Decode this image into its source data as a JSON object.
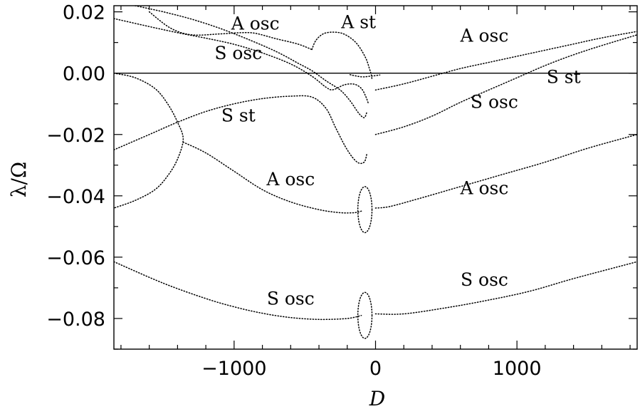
{
  "chart_data": {
    "type": "line",
    "xlabel": "D",
    "ylabel": "λ/Ω",
    "xlim": [
      -1850,
      1850
    ],
    "ylim": [
      -0.09,
      0.022
    ],
    "xticks": [
      {
        "value": -1000,
        "label": "−1000"
      },
      {
        "value": 0,
        "label": "0"
      },
      {
        "value": 1000,
        "label": "1000"
      }
    ],
    "yticks": [
      {
        "value": 0.02,
        "label": "0.02"
      },
      {
        "value": 0.0,
        "label": "0.00"
      },
      {
        "value": -0.02,
        "label": "−0.02"
      },
      {
        "value": -0.04,
        "label": "−0.04"
      },
      {
        "value": -0.06,
        "label": "−0.06"
      },
      {
        "value": -0.08,
        "label": "−0.08"
      }
    ],
    "grid": false,
    "reference_line_y": 0.0,
    "annotations": [
      {
        "text": "A osc",
        "x": -850,
        "y": 0.0142
      },
      {
        "text": "A st",
        "x": -120,
        "y": 0.0147
      },
      {
        "text": "A osc",
        "x": 770,
        "y": 0.0103
      },
      {
        "text": "S osc",
        "x": -970,
        "y": 0.0046
      },
      {
        "text": "S st",
        "x": 1330,
        "y": -0.0032
      },
      {
        "text": "S osc",
        "x": 840,
        "y": -0.0113
      },
      {
        "text": "S st",
        "x": -970,
        "y": -0.0158
      },
      {
        "text": "A osc",
        "x": -600,
        "y": -0.0366
      },
      {
        "text": "A osc",
        "x": 770,
        "y": -0.0395
      },
      {
        "text": "S osc",
        "x": 770,
        "y": -0.0693
      },
      {
        "text": "S osc",
        "x": -600,
        "y": -0.0755
      }
    ],
    "series": [
      {
        "values": [
          [
            -1850,
            0.0178
          ],
          [
            -1600,
            0.0152
          ],
          [
            -1400,
            0.0132
          ],
          [
            -1200,
            0.0114
          ],
          [
            -1000,
            0.0094
          ],
          [
            -800,
            0.0066
          ],
          [
            -600,
            0.003
          ],
          [
            -450,
            -0.001
          ],
          [
            -350,
            -0.0046
          ],
          [
            -300,
            -0.0054
          ],
          [
            -220,
            -0.0038
          ],
          [
            -150,
            -0.0036
          ],
          [
            -100,
            -0.005
          ],
          [
            -70,
            -0.0075
          ],
          [
            -50,
            -0.01
          ]
        ]
      },
      {
        "values": [
          [
            -1700,
            0.022
          ],
          [
            -1500,
            0.02
          ],
          [
            -1300,
            0.0176
          ],
          [
            -1100,
            0.0146
          ],
          [
            -900,
            0.011
          ],
          [
            -700,
            0.007
          ],
          [
            -550,
            0.0033
          ],
          [
            -450,
            0.0008
          ],
          [
            -350,
            -0.0025
          ],
          [
            -250,
            -0.0055
          ],
          [
            -180,
            -0.009
          ],
          [
            -120,
            -0.013
          ],
          [
            -80,
            -0.0145
          ],
          [
            -60,
            -0.0125
          ]
        ]
      },
      {
        "values": [
          [
            -1600,
            0.02
          ],
          [
            -1450,
            0.0147
          ],
          [
            -1300,
            0.0125
          ],
          [
            -1100,
            0.0128
          ],
          [
            -950,
            0.0132
          ],
          [
            -850,
            0.013
          ],
          [
            -700,
            0.0112
          ],
          [
            -550,
            0.0095
          ],
          [
            -450,
            0.0077
          ]
        ]
      },
      {
        "values": [
          [
            -450,
            0.0077
          ],
          [
            -420,
            0.0108
          ],
          [
            -360,
            0.013
          ],
          [
            -270,
            0.0133
          ],
          [
            -200,
            0.0122
          ],
          [
            -130,
            0.0095
          ],
          [
            -70,
            0.005
          ],
          [
            -40,
            0.001
          ],
          [
            -30,
            -0.0005
          ],
          [
            -25,
            -0.002
          ]
        ]
      },
      {
        "values": [
          [
            -180,
            -0.0005
          ],
          [
            -100,
            -0.0012
          ],
          [
            -40,
            -0.001
          ],
          [
            0,
            -0.0008
          ],
          [
            30,
            -0.0006
          ]
        ]
      },
      {
        "values": [
          [
            -1850,
            -0.025
          ],
          [
            -1600,
            -0.02
          ],
          [
            -1400,
            -0.016
          ],
          [
            -1200,
            -0.0125
          ],
          [
            -1000,
            -0.01
          ],
          [
            -800,
            -0.0083
          ],
          [
            -600,
            -0.0075
          ],
          [
            -450,
            -0.0078
          ],
          [
            -350,
            -0.0115
          ],
          [
            -280,
            -0.018
          ],
          [
            -200,
            -0.025
          ],
          [
            -130,
            -0.029
          ],
          [
            -80,
            -0.029
          ],
          [
            -60,
            -0.026
          ]
        ]
      },
      {
        "values": [
          [
            0,
            -0.0055
          ],
          [
            200,
            -0.0035
          ],
          [
            400,
            -0.001
          ],
          [
            600,
            0.0015
          ],
          [
            800,
            0.0035
          ],
          [
            1000,
            0.0055
          ],
          [
            1200,
            0.0075
          ],
          [
            1400,
            0.0095
          ],
          [
            1600,
            0.0115
          ],
          [
            1850,
            0.0136
          ]
        ]
      },
      {
        "values": [
          [
            0,
            -0.02
          ],
          [
            200,
            -0.0175
          ],
          [
            400,
            -0.014
          ],
          [
            600,
            -0.0095
          ],
          [
            800,
            -0.0055
          ],
          [
            1000,
            -0.0015
          ],
          [
            1200,
            0.0025
          ],
          [
            1400,
            0.006
          ],
          [
            1600,
            0.009
          ],
          [
            1850,
            0.0125
          ]
        ]
      },
      {
        "values": [
          [
            -1850,
            0.0
          ],
          [
            -1700,
            -0.0015
          ],
          [
            -1560,
            -0.005
          ],
          [
            -1470,
            -0.01
          ],
          [
            -1400,
            -0.016
          ],
          [
            -1360,
            -0.0215
          ],
          [
            -1400,
            -0.028
          ],
          [
            -1470,
            -0.0335
          ],
          [
            -1560,
            -0.038
          ],
          [
            -1700,
            -0.0415
          ],
          [
            -1850,
            -0.044
          ]
        ]
      },
      {
        "values": [
          [
            -1360,
            -0.0225
          ],
          [
            -1200,
            -0.026
          ],
          [
            -1000,
            -0.032
          ],
          [
            -800,
            -0.038
          ],
          [
            -600,
            -0.042
          ],
          [
            -400,
            -0.0445
          ],
          [
            -250,
            -0.0455
          ],
          [
            -150,
            -0.0455
          ],
          [
            -100,
            -0.045
          ]
        ]
      },
      {
        "values": [
          [
            0,
            -0.044
          ],
          [
            100,
            -0.0435
          ],
          [
            300,
            -0.041
          ],
          [
            600,
            -0.037
          ],
          [
            900,
            -0.033
          ],
          [
            1200,
            -0.029
          ],
          [
            1500,
            -0.0245
          ],
          [
            1850,
            -0.02
          ]
        ]
      },
      {
        "values": [
          [
            -1850,
            -0.0615
          ],
          [
            -1500,
            -0.0685
          ],
          [
            -1200,
            -0.0735
          ],
          [
            -1000,
            -0.0762
          ],
          [
            -800,
            -0.0783
          ],
          [
            -600,
            -0.0797
          ],
          [
            -400,
            -0.0803
          ],
          [
            -200,
            -0.08
          ],
          [
            -100,
            -0.079
          ]
        ]
      },
      {
        "values": [
          [
            0,
            -0.0785
          ],
          [
            200,
            -0.0785
          ],
          [
            500,
            -0.0765
          ],
          [
            800,
            -0.074
          ],
          [
            1100,
            -0.071
          ],
          [
            1400,
            -0.067
          ],
          [
            1850,
            -0.0615
          ]
        ]
      }
    ],
    "loops": [
      {
        "cx": -75,
        "cy": -0.0445,
        "rx": 50,
        "ry": 0.0075
      },
      {
        "cx": -75,
        "cy": -0.079,
        "rx": 50,
        "ry": 0.0075
      }
    ]
  }
}
